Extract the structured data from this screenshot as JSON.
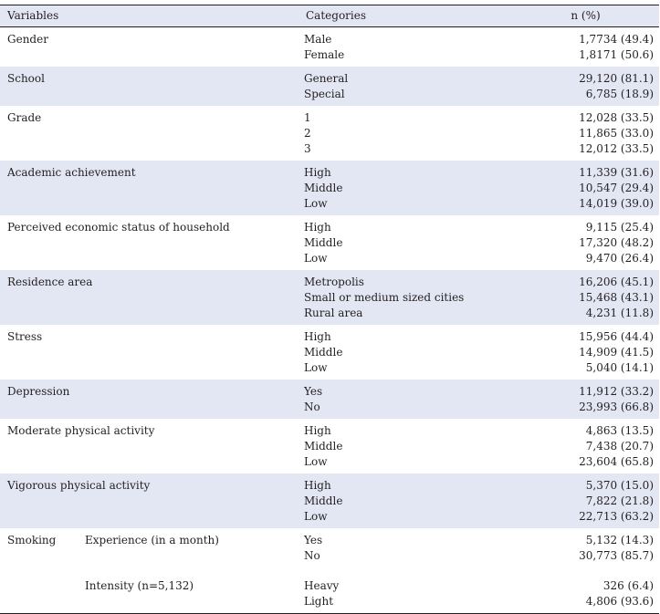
{
  "headers": {
    "variables": "Variables",
    "categories": "Categories",
    "n": "n (%)"
  },
  "rows": [
    {
      "variable": "Gender",
      "categories": [
        "Male",
        "Female"
      ],
      "values": [
        "1,7734 (49.4)",
        "1,8171 (50.6)"
      ]
    },
    {
      "variable": "School",
      "categories": [
        "General",
        "Special"
      ],
      "values": [
        "29,120 (81.1)",
        "6,785 (18.9)"
      ]
    },
    {
      "variable": "Grade",
      "categories": [
        "1",
        "2",
        "3"
      ],
      "values": [
        "12,028 (33.5)",
        "11,865 (33.0)",
        "12,012 (33.5)"
      ]
    },
    {
      "variable": "Academic achievement",
      "categories": [
        "High",
        "Middle",
        "Low"
      ],
      "values": [
        "11,339 (31.6)",
        "10,547 (29.4)",
        "14,019 (39.0)"
      ]
    },
    {
      "variable": "Perceived economic status of household",
      "categories": [
        "High",
        "Middle",
        "Low"
      ],
      "values": [
        "9,115 (25.4)",
        "17,320 (48.2)",
        "9,470 (26.4)"
      ]
    },
    {
      "variable": "Residence area",
      "categories": [
        "Metropolis",
        "Small or medium sized cities",
        "Rural area"
      ],
      "values": [
        "16,206 (45.1)",
        "15,468 (43.1)",
        "4,231 (11.8)"
      ]
    },
    {
      "variable": "Stress",
      "categories": [
        "High",
        "Middle",
        "Low"
      ],
      "values": [
        "15,956 (44.4)",
        "14,909 (41.5)",
        "5,040 (14.1)"
      ]
    },
    {
      "variable": "Depression",
      "categories": [
        "Yes",
        "No"
      ],
      "values": [
        "11,912 (33.2)",
        "23,993 (66.8)"
      ]
    },
    {
      "variable": "Moderate physical activity",
      "categories": [
        "High",
        "Middle",
        "Low"
      ],
      "values": [
        "4,863 (13.5)",
        "7,438 (20.7)",
        "23,604 (65.8)"
      ]
    },
    {
      "variable": "Vigorous physical activity",
      "categories": [
        "High",
        "Middle",
        "Low"
      ],
      "values": [
        "5,370 (15.0)",
        "7,822 (21.8)",
        "22,713 (63.2)"
      ]
    }
  ],
  "smoking": {
    "variable": "Smoking",
    "experience": {
      "label": "Experience (in a month)",
      "categories": [
        "Yes",
        "No"
      ],
      "values": [
        "5,132 (14.3)",
        "30,773 (85.7)"
      ]
    },
    "intensity": {
      "label": "Intensity (n=5,132)",
      "categories": [
        "Heavy",
        "Light"
      ],
      "values": [
        "326 (6.4)",
        "4,806 (93.6)"
      ]
    }
  },
  "colors": {
    "header_bg": "#e3e6f3",
    "shade_bg": "#e3e6f3",
    "text": "#231f20"
  }
}
